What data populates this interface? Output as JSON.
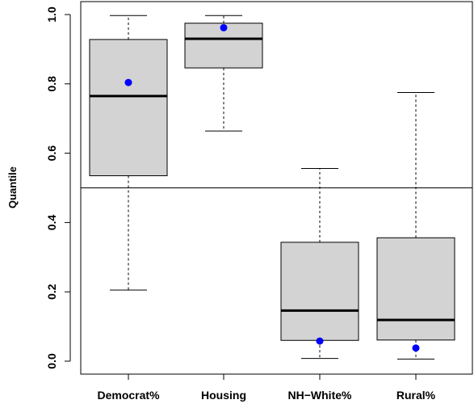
{
  "chart_data": {
    "type": "boxplot",
    "title": "",
    "xlabel": "",
    "ylabel": "Quantile",
    "ylim": [
      0.0,
      1.0
    ],
    "y_ticks": [
      "0.0",
      "0.2",
      "0.4",
      "0.6",
      "0.8",
      "1.0"
    ],
    "reference_line_y": 0.5,
    "categories": [
      "Democrat%",
      "Housing",
      "NH−White%",
      "Rural%"
    ],
    "boxes": [
      {
        "whisker_low": 0.205,
        "q1": 0.535,
        "median": 0.765,
        "q3": 0.928,
        "whisker_high": 0.997,
        "point": 0.804
      },
      {
        "whisker_low": 0.664,
        "q1": 0.846,
        "median": 0.93,
        "q3": 0.975,
        "whisker_high": 0.997,
        "point": 0.962
      },
      {
        "whisker_low": 0.008,
        "q1": 0.06,
        "median": 0.146,
        "q3": 0.343,
        "whisker_high": 0.556,
        "point": 0.058
      },
      {
        "whisker_low": 0.006,
        "q1": 0.061,
        "median": 0.119,
        "q3": 0.356,
        "whisker_high": 0.775,
        "point": 0.038
      }
    ],
    "colors": {
      "box_fill": "#d3d3d3",
      "point": "#0000ff",
      "stroke": "#000000"
    }
  }
}
